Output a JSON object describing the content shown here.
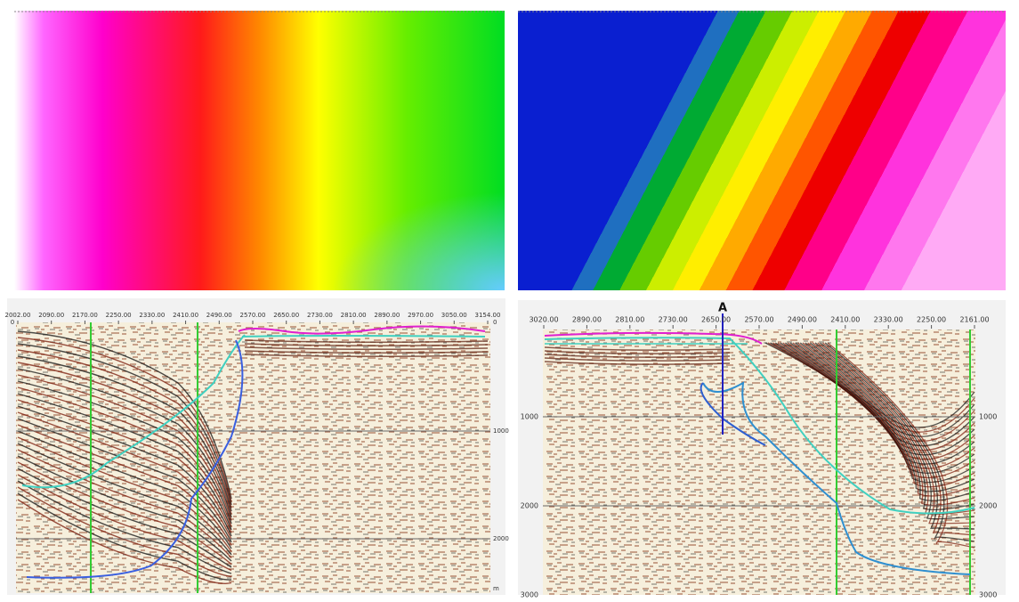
{
  "left_section": {
    "x_labels": [
      "2002.00",
      "2090.00",
      "2170.00",
      "2250.00",
      "2330.00",
      "2410.00",
      "2490.00",
      "2570.00",
      "2650.00",
      "2730.00",
      "2810.00",
      "2890.00",
      "2970.00",
      "3050.00",
      "3154.00"
    ],
    "y_labels_left": [
      "0"
    ],
    "y_labels_right": [
      "0",
      "1000",
      "2000"
    ],
    "unit": "m"
  },
  "right_section": {
    "x_labels": [
      "3020.00",
      "2890.00",
      "2810.00",
      "2730.00",
      "2650.00",
      "2570.00",
      "2490.00",
      "2410.00",
      "2330.00",
      "2250.00",
      "2161.00"
    ],
    "marker": "A",
    "y_labels_left": [
      "1000",
      "2000",
      "3000"
    ],
    "y_labels_right": [
      "1000",
      "2000",
      "3000"
    ]
  }
}
